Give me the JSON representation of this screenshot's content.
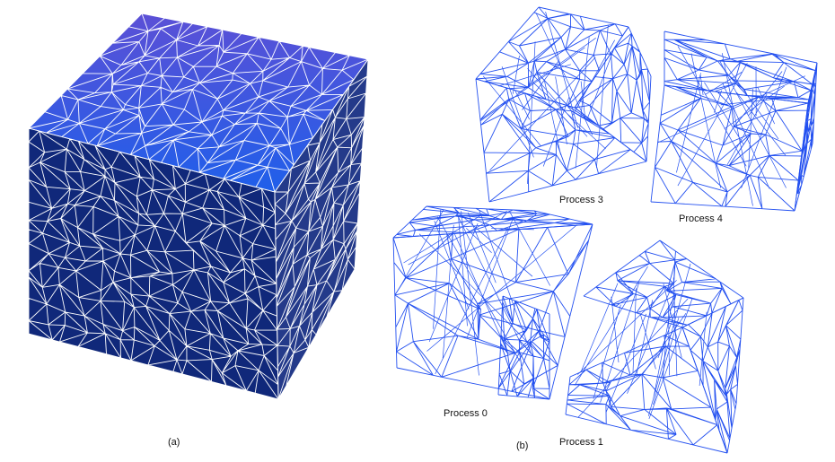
{
  "figure": {
    "panel_a_label": "(a)",
    "panel_b_label": "(b)",
    "cube_colors": {
      "front": "#10287a",
      "right": "#2a3c8c",
      "top_far": "#5b50d6",
      "top_near": "#1f5fea",
      "edges": "#ffffff"
    },
    "wire_color": "#2350f0",
    "partitions": [
      {
        "label": "Process 3"
      },
      {
        "label": "Process 4"
      },
      {
        "label": "Process 0"
      },
      {
        "label": "Process 1"
      }
    ]
  }
}
